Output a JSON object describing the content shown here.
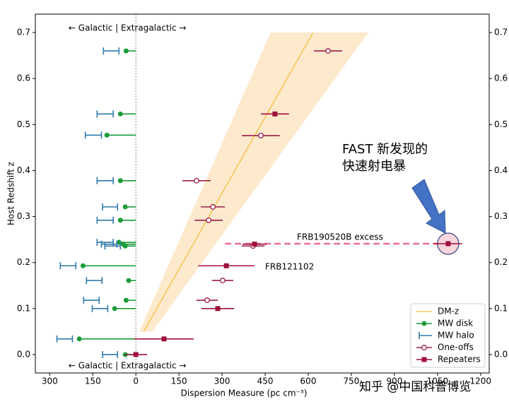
{
  "chart_data": {
    "type": "scatter",
    "xlabel": "Dispersion Measure (pc cm⁻³)",
    "ylabel": "Host Redshift z",
    "xlim": [
      -350,
      1230
    ],
    "ylim": [
      -0.04,
      0.74
    ],
    "xticks": [
      {
        "value": -300,
        "label": "300"
      },
      {
        "value": -150,
        "label": "150"
      },
      0,
      150,
      300,
      450,
      600,
      750,
      900,
      1050,
      1200
    ],
    "yticks": [
      {
        "value": 0,
        "label": "0.0"
      },
      0.1,
      0.2,
      0.3,
      0.4,
      0.5,
      0.6,
      0.7
    ],
    "legend": "lower right",
    "dmz": {
      "name": "DM-z",
      "color": "#f0c040",
      "band_color": "#fde9cc",
      "y": [
        0.05,
        0.7
      ],
      "x": [
        27,
        617
      ],
      "x_low": [
        12,
        469
      ],
      "x_high": [
        57,
        809
      ]
    },
    "series": [
      {
        "name": "MW disk",
        "marker": "disk",
        "color": "#1a9c3a",
        "x": [
          -34,
          -54,
          -101,
          -54,
          -37,
          -54,
          -59,
          -44,
          -37,
          -184,
          -25,
          -34,
          -74,
          -197,
          -37
        ],
        "y": [
          0.66,
          0.523,
          0.477,
          0.378,
          0.321,
          0.292,
          0.244,
          0.24,
          0.236,
          0.193,
          0.161,
          0.118,
          0.1,
          0.034,
          0.0
        ]
      },
      {
        "name": "MW halo",
        "marker": "halo",
        "color": "#2e7bab",
        "x": [
          -86,
          -107,
          -148,
          -107,
          -90,
          -107,
          -107,
          -93,
          -81,
          -236,
          -145,
          -155,
          -125,
          -248,
          -90
        ],
        "xerr": [
          27,
          28,
          28,
          28,
          26,
          28,
          28,
          27,
          27,
          27,
          27,
          27,
          27,
          27,
          26
        ],
        "y": [
          0.66,
          0.523,
          0.477,
          0.378,
          0.321,
          0.292,
          0.244,
          0.24,
          0.236,
          0.193,
          0.161,
          0.118,
          0.1,
          0.034,
          0.0
        ]
      },
      {
        "name": "One-offs",
        "marker": "open",
        "color": "#9b1b4a",
        "x": [
          669,
          435,
          211,
          268,
          253,
          408,
          302,
          248
        ],
        "xerr": [
          49,
          66,
          49,
          42,
          49,
          40,
          37,
          37
        ],
        "y": [
          0.66,
          0.476,
          0.378,
          0.321,
          0.292,
          0.236,
          0.161,
          0.118
        ]
      },
      {
        "name": "Repeaters",
        "marker": "square",
        "color": "#a0103a",
        "x": [
          484,
          413,
          315,
          285,
          98,
          0,
          1087
        ],
        "xerr": [
          49,
          42,
          98,
          57,
          103,
          39,
          49
        ],
        "y": [
          0.523,
          0.24,
          0.193,
          0.1,
          0.034,
          0.0,
          0.241
        ]
      }
    ],
    "annotations": {
      "top": "← Galactic | Extragalactic →",
      "bottom": "← Galactic | Extragalactic →",
      "excess": {
        "text": "FRB190520B excess",
        "x": [
          310,
          1052
        ],
        "y": 0.241
      },
      "frb121102": "FRB121102",
      "fast": [
        "FAST 新发现的",
        "快速射电暴"
      ],
      "watermark": "知乎 @中国科普博览"
    }
  }
}
